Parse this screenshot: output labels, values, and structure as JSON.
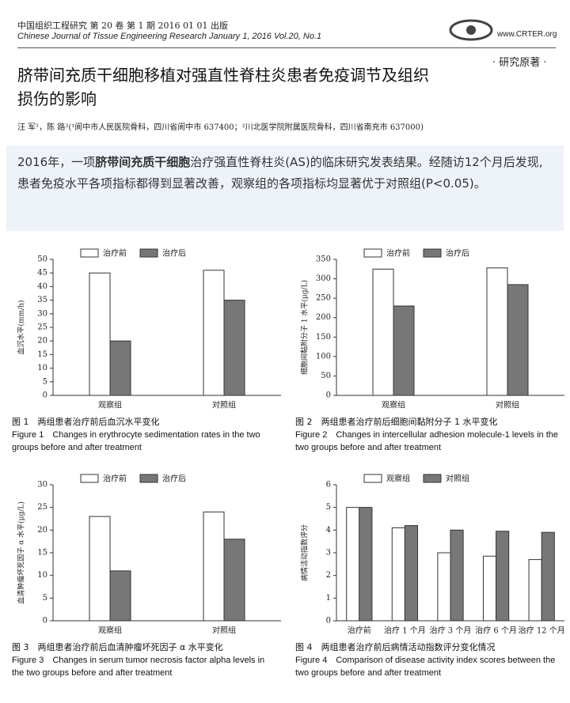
{
  "header": {
    "journal_cn": "中国组织工程研究 第 20 卷 第 1 期 2016 01 01 出版",
    "journal_en": "Chinese Journal of Tissue Engineering Research January 1, 2016 Vol.20, No.1",
    "website": "www.CRTER.org"
  },
  "section": "· 研究原著 ·",
  "title": "脐带间充质干细胞移植对强直性脊柱炎患者免疫调节及组织损伤的影响",
  "authors": "汪 军¹，陈 路²(¹阆中市人民医院骨科，四川省阆中市 637400；²川北医学院附属医院骨科，四川省南充市 637000)",
  "summary": {
    "parts": [
      {
        "text": "2016年，一项",
        "bold": false
      },
      {
        "text": "脐带间充质干细胞",
        "bold": true
      },
      {
        "text": "治疗强直性脊柱炎(AS)的临床研究发表结果。经随访12个月后发现,患者免疫水平各项指标都得到显著改善，观察组的各项指标均显著优于对照组(P<0.05)。",
        "bold": false
      }
    ]
  },
  "chart_data": [
    {
      "type": "bar",
      "ylabel": "血沉水平(mm/h)",
      "categories": [
        "观察组",
        "对照组"
      ],
      "series": [
        {
          "name": "治疗前",
          "color": "#ffffff",
          "values": [
            45,
            46
          ]
        },
        {
          "name": "治疗后",
          "color": "#777777",
          "values": [
            20,
            35
          ]
        }
      ],
      "ylim": [
        0,
        50
      ],
      "yticks": [
        0,
        5,
        10,
        15,
        20,
        25,
        30,
        35,
        40,
        45,
        50
      ],
      "caption_cn": "图 1　两组患者治疗前后血沉水平变化",
      "caption_en": "Figure 1　Changes in erythrocyte sedimentation rates in the two groups before and after treatment"
    },
    {
      "type": "bar",
      "ylabel": "细胞间黏附分子 1 水平(μg/L)",
      "categories": [
        "观察组",
        "对照组"
      ],
      "series": [
        {
          "name": "治疗前",
          "color": "#ffffff",
          "values": [
            325,
            328
          ]
        },
        {
          "name": "治疗后",
          "color": "#777777",
          "values": [
            230,
            285
          ]
        }
      ],
      "ylim": [
        0,
        350
      ],
      "yticks": [
        0,
        50,
        100,
        150,
        200,
        250,
        300,
        350
      ],
      "caption_cn": "图 2　两组患者治疗前后细胞间黏附分子 1 水平变化",
      "caption_en": "Figure 2　Changes in intercellular adhesion molecule-1 levels in the two groups before and after treatment"
    },
    {
      "type": "bar",
      "ylabel": "血清肿瘤坏死因子 α 水平(μg/L)",
      "categories": [
        "观察组",
        "对照组"
      ],
      "series": [
        {
          "name": "治疗前",
          "color": "#ffffff",
          "values": [
            23,
            24
          ]
        },
        {
          "name": "治疗后",
          "color": "#777777",
          "values": [
            11,
            18
          ]
        }
      ],
      "ylim": [
        0,
        30
      ],
      "yticks": [
        0,
        5,
        10,
        15,
        20,
        25,
        30
      ],
      "caption_cn": "图 3　两组患者治疗前后血清肿瘤坏死因子 α 水平变化",
      "caption_en": "Figure 3　Changes in serum tumor necrosis factor alpha levels in the two groups before and after treatment"
    },
    {
      "type": "bar",
      "ylabel": "病情活动指数评分",
      "categories": [
        "治疗前",
        "治疗 1 个月",
        "治疗 3 个月",
        "治疗 6 个月",
        "治疗 12 个月"
      ],
      "series": [
        {
          "name": "观察组",
          "color": "#ffffff",
          "values": [
            5.0,
            4.1,
            3.0,
            2.85,
            2.7
          ]
        },
        {
          "name": "对照组",
          "color": "#777777",
          "values": [
            5.0,
            4.2,
            4.0,
            3.95,
            3.9
          ]
        }
      ],
      "ylim": [
        0,
        6
      ],
      "yticks": [
        0,
        1,
        2,
        3,
        4,
        5,
        6
      ],
      "caption_cn": "图 4　两组患者治疗前后病情活动指数评分变化情况",
      "caption_en": "Figure 4　Comparison of disease activity index scores between the two groups before and after treatment"
    }
  ]
}
